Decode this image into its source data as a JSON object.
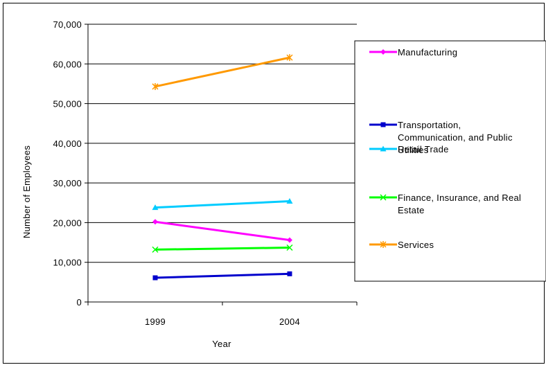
{
  "chart_data": {
    "type": "line",
    "title": "",
    "xlabel": "Year",
    "ylabel": "Number of Employees",
    "categories": [
      "1999",
      "2004"
    ],
    "ylim": [
      0,
      70000
    ],
    "yticks": [
      "0",
      "10,000",
      "20,000",
      "30,000",
      "40,000",
      "50,000",
      "60,000",
      "70,000"
    ],
    "grid": true,
    "legend_position": "right",
    "series": [
      {
        "name": "Manufacturing",
        "values": [
          20200,
          15600
        ],
        "color": "#ff00ff",
        "marker": "diamond",
        "legend_lines": [
          "Manufacturing"
        ]
      },
      {
        "name": "Transportation, Communication, and Public Utilities",
        "values": [
          6100,
          7100
        ],
        "color": "#0000cc",
        "marker": "square",
        "legend_lines": [
          "Transportation,",
          "Communication, and Public",
          "Utilities"
        ]
      },
      {
        "name": "Retail Trade",
        "values": [
          23800,
          25400
        ],
        "color": "#00ccff",
        "marker": "triangle",
        "legend_lines": [
          "Retail Trade"
        ]
      },
      {
        "name": "Finance, Insurance, and Real Estate",
        "values": [
          13200,
          13700
        ],
        "color": "#00ff00",
        "marker": "x",
        "legend_lines": [
          "Finance, Insurance, and Real",
          "Estate"
        ]
      },
      {
        "name": "Services",
        "values": [
          54300,
          61600
        ],
        "color": "#ff9900",
        "marker": "star",
        "legend_lines": [
          "Services"
        ]
      }
    ]
  }
}
